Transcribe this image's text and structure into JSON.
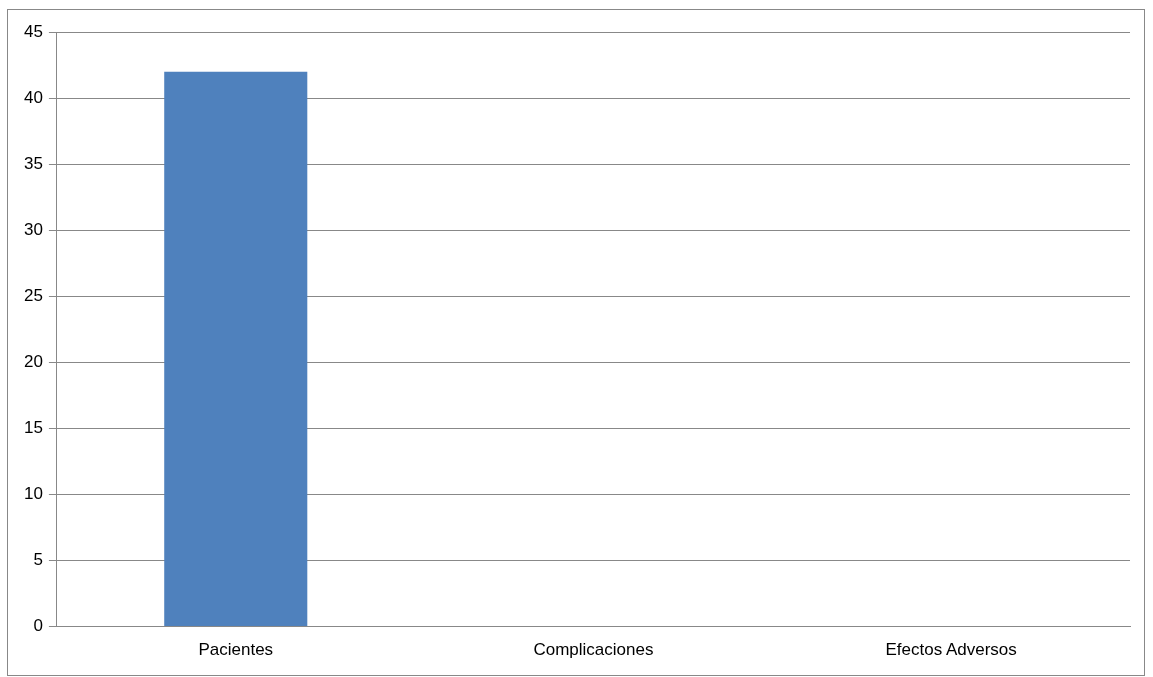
{
  "chart_data": {
    "type": "bar",
    "categories": [
      "Pacientes",
      "Complicaciones",
      "Efectos Adversos"
    ],
    "values": [
      42,
      0,
      0
    ],
    "color": "#4f81bd",
    "ylim": [
      0,
      45
    ],
    "yticks": [
      0,
      5,
      10,
      15,
      20,
      25,
      30,
      35,
      40,
      45
    ],
    "grid": "y",
    "legend": false
  }
}
